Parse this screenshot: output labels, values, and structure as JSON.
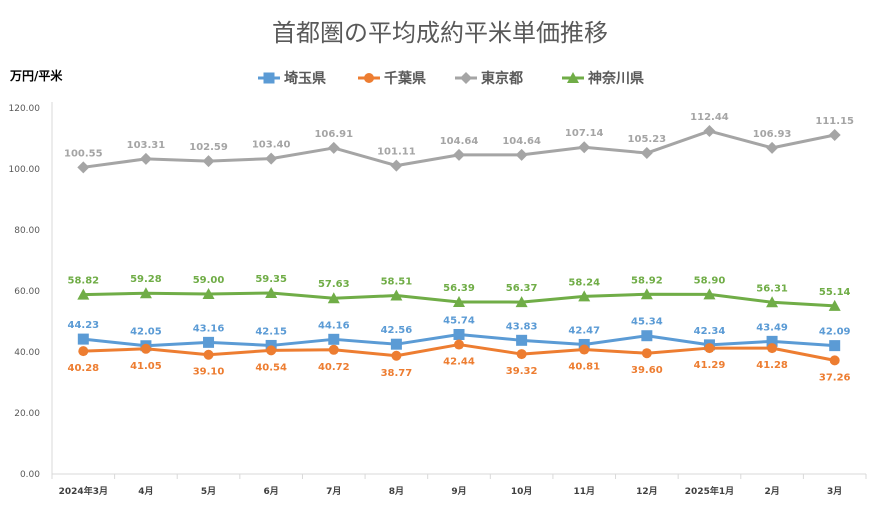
{
  "chart_data": {
    "type": "line",
    "title": "首都圏の平均成約平米単価推移",
    "ylabel": "万円/平米",
    "xlabel": "",
    "categories": [
      "2024年3月",
      "4月",
      "5月",
      "6月",
      "7月",
      "8月",
      "9月",
      "10月",
      "11月",
      "12月",
      "2025年1月",
      "2月",
      "3月"
    ],
    "ylim": [
      0,
      120
    ],
    "yticks": [
      "0.00",
      "20.00",
      "40.00",
      "60.00",
      "80.00",
      "100.00",
      "120.00"
    ],
    "grid": false,
    "legend_position": "top",
    "series": [
      {
        "name": "埼玉県",
        "color": "#5B9BD5",
        "marker": "square",
        "label_position": "above",
        "values": [
          44.23,
          42.05,
          43.16,
          42.15,
          44.16,
          42.56,
          45.74,
          43.83,
          42.47,
          45.34,
          42.34,
          43.49,
          42.09
        ],
        "labels": [
          "44.23",
          "42.05",
          "43.16",
          "42.15",
          "44.16",
          "42.56",
          "45.74",
          "43.83",
          "42.47",
          "45.34",
          "42.34",
          "43.49",
          "42.09"
        ]
      },
      {
        "name": "千葉県",
        "color": "#ED7D31",
        "marker": "circle",
        "label_position": "below",
        "values": [
          40.28,
          41.05,
          39.1,
          40.54,
          40.72,
          38.77,
          42.44,
          39.32,
          40.81,
          39.6,
          41.29,
          41.28,
          37.26
        ],
        "labels": [
          "40.28",
          "41.05",
          "39.10",
          "40.54",
          "40.72",
          "38.77",
          "42.44",
          "39.32",
          "40.81",
          "39.60",
          "41.29",
          "41.28",
          "37.26"
        ]
      },
      {
        "name": "東京都",
        "color": "#A5A5A5",
        "marker": "diamond",
        "label_position": "above",
        "values": [
          100.55,
          103.31,
          102.59,
          103.4,
          106.91,
          101.11,
          104.64,
          104.64,
          107.14,
          105.23,
          112.44,
          106.93,
          111.15
        ],
        "labels": [
          "100.55",
          "103.31",
          "102.59",
          "103.40",
          "106.91",
          "101.11",
          "104.64",
          "104.64",
          "107.14",
          "105.23",
          "112.44",
          "106.93",
          "111.15"
        ]
      },
      {
        "name": "神奈川県",
        "color": "#70AD47",
        "marker": "triangle",
        "label_position": "above",
        "values": [
          58.82,
          59.28,
          59.0,
          59.35,
          57.63,
          58.51,
          56.39,
          56.37,
          58.24,
          58.92,
          58.9,
          56.31,
          55.14
        ],
        "labels": [
          "58.82",
          "59.28",
          "59.00",
          "59.35",
          "57.63",
          "58.51",
          "56.39",
          "56.37",
          "58.24",
          "58.92",
          "58.90",
          "56.31",
          "55.14"
        ]
      }
    ]
  }
}
